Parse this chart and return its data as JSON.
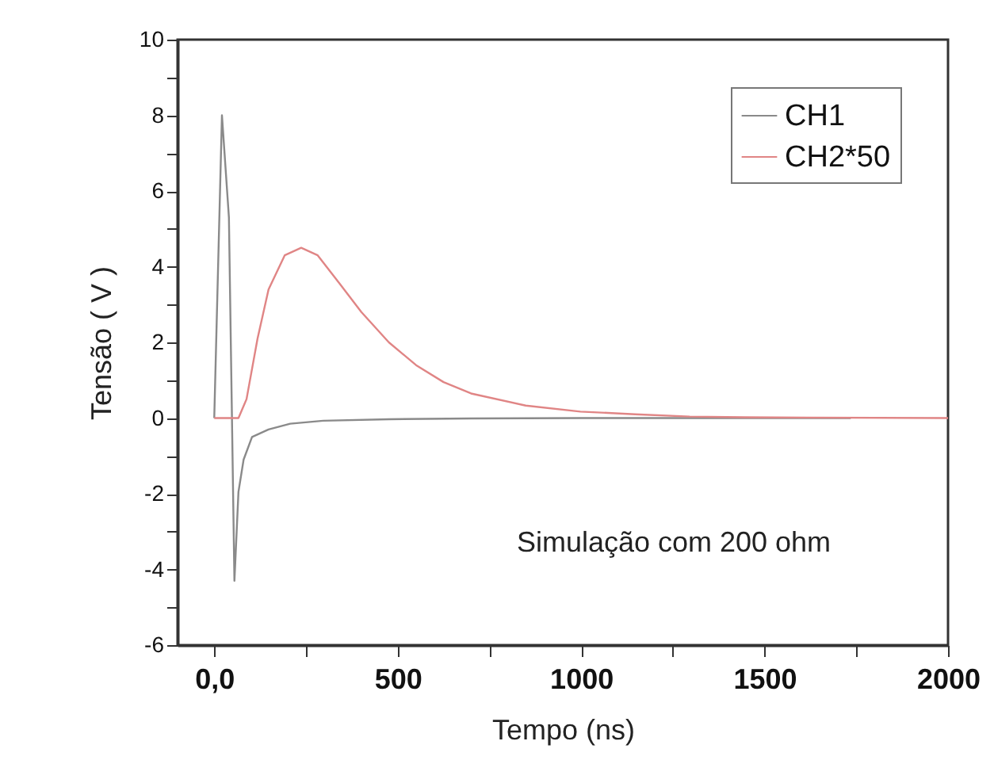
{
  "chart_data": {
    "type": "line",
    "xlabel": "Tempo (ns)",
    "ylabel": "Tensão ( V )",
    "xlim": [
      -100,
      2000
    ],
    "ylim": [
      -6,
      10
    ],
    "xticks": [
      {
        "value": 0,
        "label": "0,0"
      },
      {
        "value": 250,
        "label": null
      },
      500,
      {
        "value": 750,
        "label": null
      },
      1000,
      {
        "value": 1250,
        "label": null
      },
      1500,
      {
        "value": 1750,
        "label": null
      },
      2000
    ],
    "yticks": [
      -6,
      {
        "value": -5,
        "label": null
      },
      -4,
      {
        "value": -3,
        "label": null
      },
      -2,
      {
        "value": -1,
        "label": null
      },
      0,
      {
        "value": 1,
        "label": null
      },
      2,
      {
        "value": 3,
        "label": null
      },
      4,
      {
        "value": 5,
        "label": null
      },
      6,
      {
        "value": 7,
        "label": null
      },
      8,
      {
        "value": 9,
        "label": null
      },
      10
    ],
    "grid": false,
    "legend": "top right",
    "line_style": "solid",
    "marker": "none",
    "annotations": [
      "Simulação com 200 ohm"
    ],
    "series": [
      {
        "name": "CH1",
        "color": "#8a8a8a",
        "x": [
          0,
          21,
          40,
          55,
          66,
          80,
          103,
          148,
          207,
          297,
          476,
          700,
          1000,
          1735
        ],
        "values": [
          0,
          8.0,
          5.3,
          -4.3,
          -1.95,
          -1.1,
          -0.5,
          -0.3,
          -0.15,
          -0.07,
          -0.03,
          -0.01,
          0,
          0
        ]
      },
      {
        "name": "CH2*50",
        "color": "#e08585",
        "x": [
          0,
          66,
          88,
          118,
          148,
          192,
          237,
          282,
          342,
          401,
          476,
          550,
          625,
          700,
          849,
          998,
          1147,
          1296,
          1445,
          2000
        ],
        "values": [
          0,
          0,
          0.5,
          2.1,
          3.4,
          4.3,
          4.5,
          4.3,
          3.55,
          2.8,
          2.0,
          1.4,
          0.95,
          0.65,
          0.33,
          0.17,
          0.1,
          0.04,
          0.02,
          0
        ]
      }
    ]
  }
}
